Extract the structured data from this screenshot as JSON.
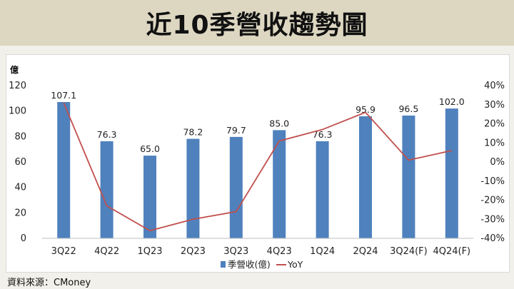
{
  "page": {
    "title": "近10季營收趨勢圖",
    "source": "資料來源：CMoney"
  },
  "colors": {
    "bar": "#4f81bd",
    "line": "#c0504d",
    "header_bg": "#ddd7c2",
    "page_bg": "#f2f0ea"
  },
  "chart_data": {
    "type": "bar",
    "categories": [
      "3Q22",
      "4Q22",
      "1Q23",
      "2Q23",
      "3Q23",
      "4Q23",
      "1Q24",
      "2Q24",
      "3Q24(F)",
      "4Q24(F)"
    ],
    "series": [
      {
        "name": "季營收(億)",
        "type": "bar",
        "axis": "left",
        "values": [
          107.1,
          76.3,
          65.0,
          78.2,
          79.7,
          85.0,
          76.3,
          95.9,
          96.5,
          102.0
        ],
        "labels": [
          "107.1",
          "76.3",
          "65.0",
          "78.2",
          "79.7",
          "85.0",
          "76.3",
          "95.9",
          "96.5",
          "102.0"
        ]
      },
      {
        "name": "YoY",
        "type": "line",
        "axis": "right",
        "values": [
          31,
          -23,
          -36,
          -30,
          -26,
          11,
          17,
          26,
          1,
          6
        ]
      }
    ],
    "y_left": {
      "unit": "億",
      "min": 0,
      "max": 120,
      "ticks": [
        0,
        20,
        40,
        60,
        80,
        100,
        120
      ],
      "tick_labels": [
        "0",
        "20",
        "40",
        "60",
        "80",
        "100",
        "120"
      ]
    },
    "y_right": {
      "min": -40,
      "max": 40,
      "ticks": [
        -40,
        -30,
        -20,
        -10,
        0,
        10,
        20,
        30,
        40
      ],
      "tick_labels": [
        "-40%",
        "-30%",
        "-20%",
        "-10%",
        "0%",
        "10%",
        "20%",
        "30%",
        "40%"
      ]
    },
    "legend": {
      "position": "bottom-center",
      "items": [
        "季營收(億)",
        "YoY"
      ]
    },
    "grid": false
  }
}
